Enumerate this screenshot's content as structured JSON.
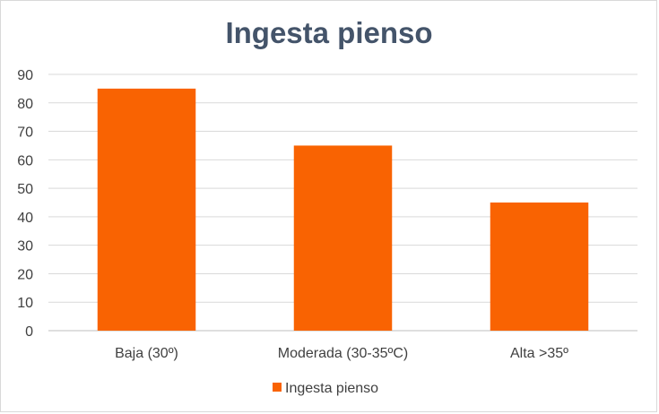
{
  "chart_data": {
    "type": "bar",
    "title": "Ingesta pienso",
    "categories": [
      "Baja (30º)",
      "Moderada (30-35ºC)",
      "Alta >35º"
    ],
    "series": [
      {
        "name": "Ingesta pienso",
        "values": [
          85,
          65,
          45
        ],
        "color": "#f96302"
      }
    ],
    "ylim": [
      0,
      90
    ],
    "yticks": [
      0,
      10,
      20,
      30,
      40,
      50,
      60,
      70,
      80,
      90
    ],
    "grid": true,
    "legend": "bottom"
  }
}
